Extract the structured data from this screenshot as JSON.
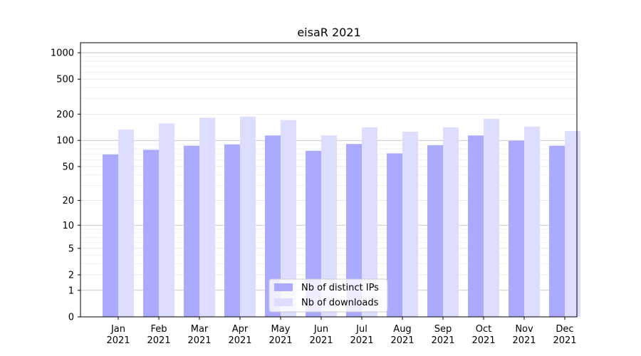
{
  "chart_data": {
    "type": "bar",
    "title": "eisaR 2021",
    "xlabel": "",
    "ylabel": "",
    "scale": "log1p",
    "ylim": [
      0,
      1300
    ],
    "categories": [
      [
        "Jan",
        "2021"
      ],
      [
        "Feb",
        "2021"
      ],
      [
        "Mar",
        "2021"
      ],
      [
        "Apr",
        "2021"
      ],
      [
        "May",
        "2021"
      ],
      [
        "Jun",
        "2021"
      ],
      [
        "Jul",
        "2021"
      ],
      [
        "Aug",
        "2021"
      ],
      [
        "Sep",
        "2021"
      ],
      [
        "Oct",
        "2021"
      ],
      [
        "Nov",
        "2021"
      ],
      [
        "Dec",
        "2021"
      ]
    ],
    "yticks": [
      0,
      1,
      2,
      5,
      10,
      20,
      50,
      100,
      200,
      500,
      1000
    ],
    "ytick_labels": [
      "0",
      "1",
      "2",
      "5",
      "10",
      "20",
      "50",
      "100",
      "200",
      "500",
      "1000"
    ],
    "series": [
      {
        "name": "Nb of distinct IPs",
        "color": "#aaaaff",
        "values": [
          69,
          78,
          87,
          90,
          114,
          76,
          91,
          71,
          88,
          114,
          99,
          87
        ]
      },
      {
        "name": "Nb of downloads",
        "color": "#ddddff",
        "values": [
          133,
          157,
          182,
          187,
          171,
          114,
          141,
          126,
          141,
          177,
          144,
          128
        ]
      }
    ],
    "grid": true,
    "legend_position": "bottom-center"
  }
}
